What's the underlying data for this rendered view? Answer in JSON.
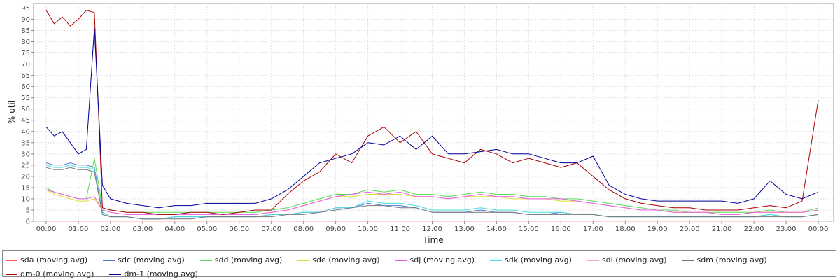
{
  "chart_data": {
    "type": "line",
    "title": "",
    "xlabel": "Time",
    "ylabel": "% util",
    "x": [
      "00:00",
      "00:15",
      "00:30",
      "00:45",
      "01:00",
      "01:15",
      "01:30",
      "01:45",
      "02:00",
      "02:30",
      "03:00",
      "03:30",
      "04:00",
      "04:30",
      "05:00",
      "05:30",
      "06:00",
      "06:30",
      "07:00",
      "07:30",
      "08:00",
      "08:30",
      "09:00",
      "09:30",
      "10:00",
      "10:30",
      "11:00",
      "11:30",
      "12:00",
      "12:30",
      "13:00",
      "13:30",
      "14:00",
      "14:30",
      "15:00",
      "15:30",
      "16:00",
      "16:30",
      "17:00",
      "17:30",
      "18:00",
      "18:30",
      "19:00",
      "19:30",
      "20:00",
      "20:30",
      "21:00",
      "21:30",
      "22:00",
      "22:30",
      "23:00",
      "23:30",
      "24:00"
    ],
    "x_ticks": [
      "00:00",
      "01:00",
      "02:00",
      "03:00",
      "04:00",
      "05:00",
      "06:00",
      "07:00",
      "08:00",
      "09:00",
      "10:00",
      "11:00",
      "12:00",
      "13:00",
      "14:00",
      "15:00",
      "16:00",
      "17:00",
      "18:00",
      "19:00",
      "20:00",
      "21:00",
      "22:00",
      "23:00",
      "00:00"
    ],
    "y_ticks": [
      0,
      5,
      10,
      15,
      20,
      25,
      30,
      35,
      40,
      45,
      50,
      55,
      60,
      65,
      70,
      75,
      80,
      85,
      90,
      95
    ],
    "ylim": [
      0,
      97
    ],
    "xlim": [
      "00:00",
      "24:00"
    ],
    "grid": true,
    "legend_position": "bottom",
    "series": [
      {
        "name": "sda (moving avg)",
        "color": "#ff5555",
        "values": [
          0,
          0,
          0,
          0,
          0,
          0,
          0,
          0,
          0,
          0,
          0,
          0,
          0,
          0,
          0,
          0,
          0,
          0,
          0,
          0,
          0,
          0,
          0,
          0,
          0,
          0,
          0,
          0,
          0,
          0,
          0,
          0,
          0,
          0,
          0,
          0,
          0,
          0,
          0,
          0,
          0,
          0,
          0,
          0,
          0,
          0,
          0,
          0,
          0,
          0,
          0,
          0,
          0
        ]
      },
      {
        "name": "sdc (moving avg)",
        "color": "#5577dd",
        "values": [
          26,
          25,
          25,
          26,
          25,
          25,
          24,
          4,
          2,
          2,
          1,
          1,
          2,
          2,
          2,
          2,
          2,
          2,
          3,
          3,
          4,
          4,
          6,
          6,
          8,
          7,
          7,
          6,
          4,
          4,
          4,
          5,
          4,
          4,
          3,
          3,
          4,
          3,
          3,
          2,
          2,
          2,
          2,
          2,
          2,
          2,
          2,
          2,
          2,
          3,
          2,
          2,
          3
        ]
      },
      {
        "name": "sdd (moving avg)",
        "color": "#55dd55",
        "values": [
          15,
          13,
          12,
          11,
          10,
          10,
          28,
          6,
          5,
          4,
          4,
          4,
          4,
          4,
          4,
          4,
          4,
          4,
          5,
          6,
          8,
          10,
          12,
          12,
          14,
          13,
          14,
          12,
          12,
          11,
          12,
          13,
          12,
          12,
          11,
          11,
          10,
          10,
          9,
          8,
          7,
          6,
          5,
          5,
          4,
          4,
          4,
          4,
          4,
          5,
          4,
          4,
          6
        ]
      },
      {
        "name": "sde (moving avg)",
        "color": "#dddd33",
        "values": [
          14,
          12,
          11,
          10,
          9,
          9,
          10,
          5,
          4,
          3,
          3,
          3,
          3,
          3,
          3,
          3,
          3,
          3,
          4,
          5,
          7,
          9,
          11,
          11,
          12,
          12,
          12,
          11,
          11,
          10,
          11,
          11,
          11,
          10,
          10,
          10,
          9,
          9,
          8,
          7,
          6,
          5,
          5,
          4,
          4,
          4,
          3,
          3,
          4,
          4,
          4,
          4,
          5
        ]
      },
      {
        "name": "sdj (moving avg)",
        "color": "#ee55ee",
        "values": [
          14,
          13,
          12,
          11,
          10,
          10,
          11,
          5,
          4,
          3,
          3,
          3,
          3,
          3,
          3,
          3,
          3,
          3,
          4,
          5,
          7,
          9,
          11,
          12,
          13,
          12,
          13,
          11,
          11,
          10,
          11,
          12,
          11,
          11,
          10,
          10,
          10,
          9,
          8,
          7,
          6,
          5,
          5,
          4,
          4,
          4,
          3,
          3,
          4,
          4,
          4,
          4,
          5
        ]
      },
      {
        "name": "sdk (moving avg)",
        "color": "#44dddd",
        "values": [
          25,
          24,
          24,
          25,
          24,
          24,
          23,
          4,
          2,
          2,
          1,
          1,
          2,
          2,
          2,
          2,
          2,
          2,
          3,
          3,
          4,
          4,
          6,
          6,
          9,
          8,
          8,
          7,
          5,
          5,
          5,
          6,
          5,
          5,
          4,
          4,
          4,
          3,
          3,
          2,
          2,
          2,
          2,
          2,
          2,
          2,
          2,
          2,
          2,
          3,
          2,
          2,
          3
        ]
      },
      {
        "name": "sdl (moving avg)",
        "color": "#ffaaaa",
        "values": [
          0,
          0,
          0,
          0,
          0,
          0,
          0,
          0,
          0,
          0,
          0,
          0,
          0,
          0,
          0,
          0,
          0,
          0,
          0,
          0,
          0,
          0,
          0,
          0,
          0,
          0,
          0,
          0,
          0,
          0,
          0,
          0,
          0,
          0,
          0,
          0,
          0,
          0,
          0,
          0,
          0,
          0,
          0,
          0,
          0,
          0,
          0,
          0,
          0,
          0,
          0,
          0,
          0
        ]
      },
      {
        "name": "sdm (moving avg)",
        "color": "#777777",
        "values": [
          24,
          23,
          23,
          24,
          23,
          23,
          22,
          3,
          2,
          2,
          1,
          1,
          1,
          1,
          2,
          2,
          2,
          2,
          2,
          3,
          3,
          4,
          5,
          6,
          7,
          7,
          6,
          6,
          4,
          4,
          4,
          4,
          4,
          4,
          3,
          3,
          3,
          3,
          3,
          2,
          2,
          2,
          2,
          2,
          2,
          2,
          2,
          2,
          2,
          2,
          2,
          2,
          3
        ]
      },
      {
        "name": "dm-0 (moving avg)",
        "color": "#aa0000",
        "values": [
          94,
          88,
          91,
          87,
          90,
          94,
          93,
          6,
          5,
          4,
          4,
          3,
          3,
          4,
          4,
          3,
          4,
          5,
          5,
          12,
          18,
          22,
          30,
          26,
          38,
          42,
          35,
          40,
          30,
          28,
          26,
          32,
          30,
          26,
          28,
          26,
          24,
          26,
          20,
          14,
          10,
          8,
          7,
          6,
          6,
          5,
          5,
          5,
          6,
          7,
          6,
          9,
          54
        ]
      },
      {
        "name": "dm-1 (moving avg)",
        "color": "#000099",
        "values": [
          42,
          38,
          40,
          35,
          30,
          32,
          86,
          16,
          10,
          8,
          7,
          6,
          7,
          7,
          8,
          8,
          8,
          8,
          10,
          14,
          20,
          26,
          28,
          30,
          35,
          34,
          38,
          32,
          38,
          30,
          30,
          31,
          32,
          30,
          30,
          28,
          26,
          26,
          29,
          16,
          12,
          10,
          9,
          9,
          9,
          9,
          9,
          8,
          10,
          18,
          12,
          10,
          13
        ]
      }
    ]
  }
}
